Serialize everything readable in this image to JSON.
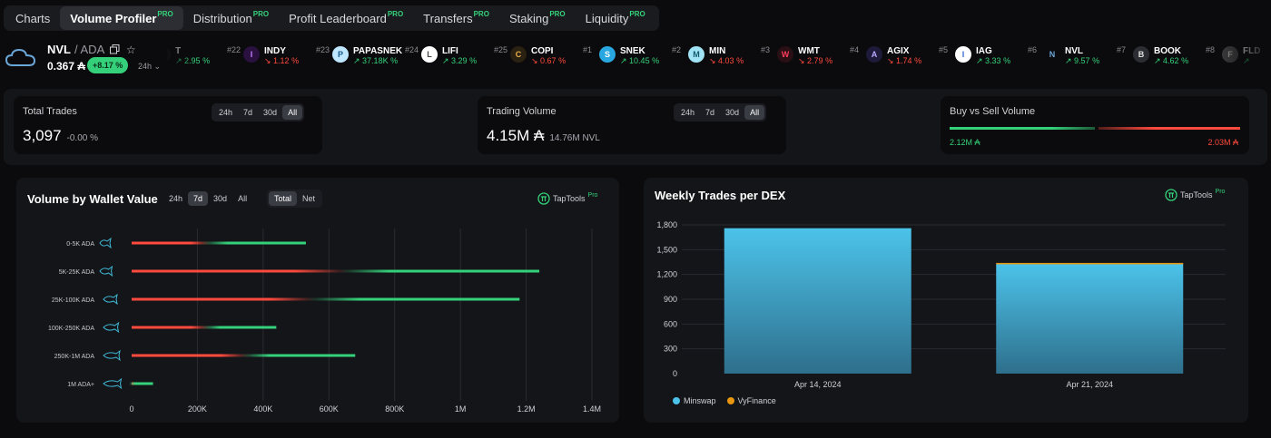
{
  "tabs": [
    {
      "label": "Charts",
      "pro": "",
      "active": false
    },
    {
      "label": "Volume Profiler",
      "pro": "PRO",
      "active": true
    },
    {
      "label": "Distribution",
      "pro": "PRO",
      "active": false
    },
    {
      "label": "Profit Leaderboard",
      "pro": "PRO",
      "active": false
    },
    {
      "label": "Transfers",
      "pro": "PRO",
      "active": false
    },
    {
      "label": "Staking",
      "pro": "PRO",
      "active": false
    },
    {
      "label": "Liquidity",
      "pro": "PRO",
      "active": false
    }
  ],
  "token": {
    "symbol": "NVL",
    "quote": "/ ADA",
    "price": "0.367 ₳",
    "change": "+8.17 %",
    "timeframe": "24h"
  },
  "ticker": [
    {
      "rank": "",
      "symbol": "T",
      "change": "2.95 %",
      "dir": "up"
    },
    {
      "rank": "#22",
      "symbol": "INDY",
      "change": "1.12 %",
      "dir": "down"
    },
    {
      "rank": "#23",
      "symbol": "PAPASNEK",
      "change": "37.18K %",
      "dir": "up"
    },
    {
      "rank": "#24",
      "symbol": "LIFI",
      "change": "3.29 %",
      "dir": "up"
    },
    {
      "rank": "#25",
      "symbol": "COPI",
      "change": "0.67 %",
      "dir": "down"
    },
    {
      "rank": "#1",
      "symbol": "SNEK",
      "change": "10.45 %",
      "dir": "up"
    },
    {
      "rank": "#2",
      "symbol": "MIN",
      "change": "4.03 %",
      "dir": "down"
    },
    {
      "rank": "#3",
      "symbol": "WMT",
      "change": "2.79 %",
      "dir": "down"
    },
    {
      "rank": "#4",
      "symbol": "AGIX",
      "change": "1.74 %",
      "dir": "down"
    },
    {
      "rank": "#5",
      "symbol": "IAG",
      "change": "3.33 %",
      "dir": "up"
    },
    {
      "rank": "#6",
      "symbol": "NVL",
      "change": "9.57 %",
      "dir": "up"
    },
    {
      "rank": "#7",
      "symbol": "BOOK",
      "change": "4.62 %",
      "dir": "up"
    },
    {
      "rank": "#8",
      "symbol": "FLD",
      "change": "",
      "dir": "up"
    }
  ],
  "stats": {
    "total_trades": {
      "label": "Total Trades",
      "value": "3,097",
      "sub": "-0.00 %",
      "options": [
        "24h",
        "7d",
        "30d",
        "All"
      ],
      "selected": "All"
    },
    "trading_volume": {
      "label": "Trading Volume",
      "value": "4.15M ₳",
      "sub": "14.76M NVL",
      "options": [
        "24h",
        "7d",
        "30d",
        "All"
      ],
      "selected": "All"
    },
    "buy_sell": {
      "label": "Buy vs Sell Volume",
      "buy": "2.12M ₳",
      "sell": "2.03M ₳",
      "buy_share": 0.511
    }
  },
  "volume_panel": {
    "title": "Volume by Wallet Value",
    "timeframes": [
      "24h",
      "7d",
      "30d",
      "All"
    ],
    "selected_timeframe": "7d",
    "modes": [
      "Total",
      "Net"
    ],
    "selected_mode": "Total",
    "brand": "TapTools",
    "brand_pro": "Pro"
  },
  "dex_panel": {
    "title": "Weekly Trades per DEX",
    "brand": "TapTools",
    "brand_pro": "Pro",
    "legend": [
      {
        "name": "Minswap",
        "color": "#4cc3ea"
      },
      {
        "name": "VyFinance",
        "color": "#e8960f"
      }
    ]
  },
  "colors": {
    "buy": "#35d17a",
    "sell": "#ff4a3d",
    "accent": "#35d17a"
  },
  "chart_data": [
    {
      "type": "bar",
      "orientation": "horizontal",
      "title": "Volume by Wallet Value",
      "categories": [
        "0-5K ADA",
        "5K-25K ADA",
        "25K-100K ADA",
        "100K-250K ADA",
        "250K-1M ADA",
        "1M ADA+"
      ],
      "series": [
        {
          "name": "",
          "color": "#ff4a3d",
          "values": [
            240000,
            660000,
            560000,
            240000,
            360000,
            20000
          ]
        },
        {
          "name": "",
          "color": "#35d17a",
          "values": [
            290000,
            580000,
            620000,
            200000,
            320000,
            45000
          ]
        }
      ],
      "xticks": [
        "0",
        "200K",
        "400K",
        "600K",
        "800K",
        "1M",
        "1.2M",
        "1.4M"
      ],
      "xlim": [
        0,
        1400000
      ],
      "stacked": true,
      "grid": true
    },
    {
      "type": "bar",
      "title": "Weekly Trades per DEX",
      "categories": [
        "Apr 14, 2024",
        "Apr 21, 2024"
      ],
      "series": [
        {
          "name": "Minswap",
          "color": "#4cc3ea",
          "values": [
            1760,
            1330
          ]
        },
        {
          "name": "VyFinance",
          "color": "#e8960f",
          "values": [
            0,
            10
          ]
        }
      ],
      "yticks": [
        "0",
        "300",
        "600",
        "900",
        "1,200",
        "1,500",
        "1,800"
      ],
      "ylim": [
        0,
        1800
      ],
      "stacked": true,
      "grid": true,
      "legend": "bottom-left"
    }
  ]
}
